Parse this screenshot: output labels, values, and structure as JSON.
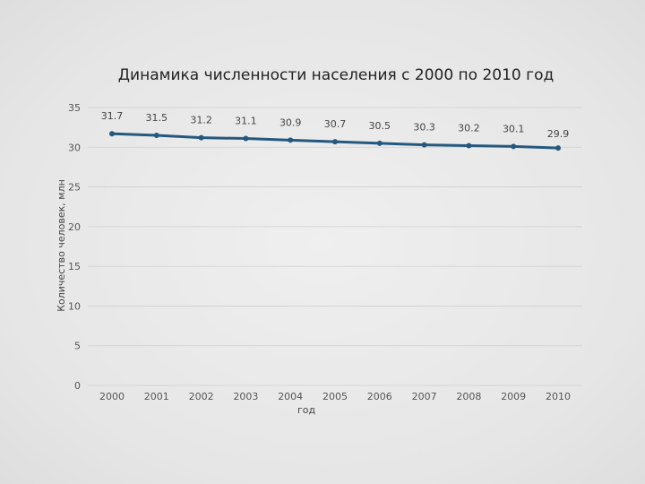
{
  "chart_data": {
    "type": "line",
    "title": "Динамика численности населения с 2000 по 2010 год",
    "xlabel": "год",
    "ylabel": "Количество человек, млн",
    "categories": [
      "2000",
      "2001",
      "2002",
      "2003",
      "2004",
      "2005",
      "2006",
      "2007",
      "2008",
      "2009",
      "2010"
    ],
    "series": [
      {
        "values": [
          31.7,
          31.5,
          31.2,
          31.1,
          30.9,
          30.7,
          30.5,
          30.3,
          30.2,
          30.1,
          29.9
        ]
      }
    ],
    "data_labels": [
      "31.7",
      "31.5",
      "31.2",
      "31.1",
      "30.9",
      "30.7",
      "30.5",
      "30.3",
      "30.2",
      "30.1",
      "29.9"
    ],
    "y_ticks": [
      0,
      5,
      10,
      15,
      20,
      25,
      30,
      35
    ],
    "y_tick_labels": [
      "0",
      "5",
      "10",
      "15",
      "20",
      "25",
      "30",
      "35"
    ],
    "ylim": [
      0,
      35
    ],
    "grid": true,
    "legend": "none",
    "line_color": "#24587f"
  }
}
